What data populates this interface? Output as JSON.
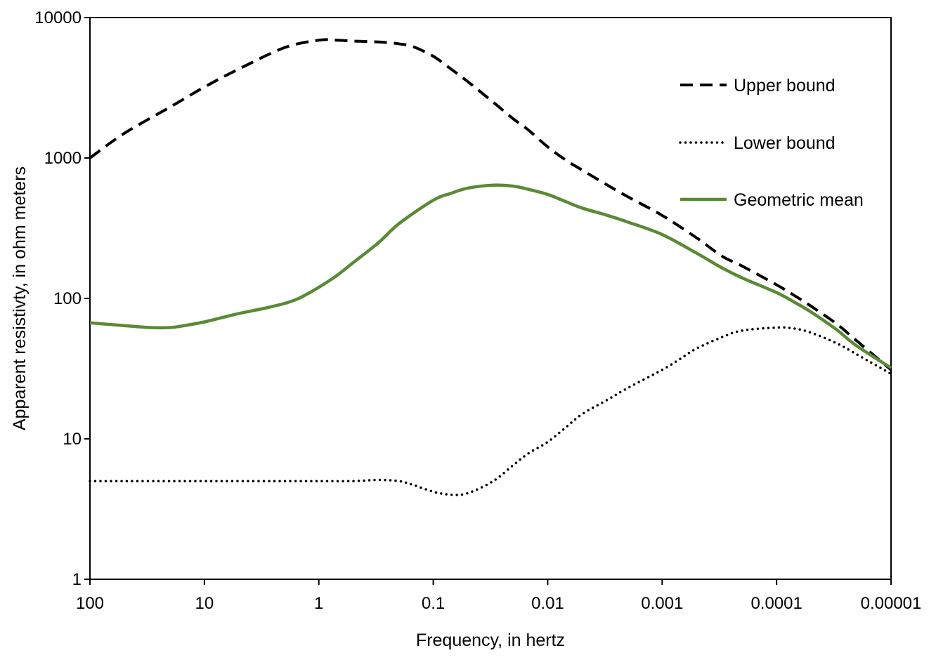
{
  "chart_data": {
    "type": "line",
    "title": "",
    "xlabel": "Frequency, in hertz",
    "ylabel": "Apparent resistivty, in ohm meters",
    "x_scale": "log",
    "y_scale": "log",
    "x_reversed": true,
    "xlim": [
      100,
      1e-05
    ],
    "ylim": [
      1,
      10000
    ],
    "x_ticks": [
      100,
      10,
      1,
      0.1,
      0.01,
      0.001,
      0.0001,
      1e-05
    ],
    "x_tick_labels": [
      "100",
      "10",
      "1",
      "0.1",
      "0.01",
      "0.001",
      "0.0001",
      "0.00001"
    ],
    "y_ticks": [
      1,
      10,
      100,
      1000,
      10000
    ],
    "y_tick_labels": [
      "1",
      "10",
      "100",
      "1000",
      "10000"
    ],
    "grid": false,
    "legend_position": "top-right",
    "series": [
      {
        "name": "Upper bound",
        "style": "dashed",
        "color": "#000000",
        "x": [
          100,
          50,
          20,
          10,
          5,
          2,
          1,
          0.7,
          0.5,
          0.3,
          0.2,
          0.15,
          0.1,
          0.07,
          0.05,
          0.03,
          0.02,
          0.015,
          0.01,
          0.007,
          0.005,
          0.003,
          0.002,
          0.001,
          0.0005,
          0.0003,
          0.0002,
          0.0001,
          7e-05,
          5e-05,
          3e-05,
          2e-05,
          1e-05
        ],
        "y": [
          1000,
          1500,
          2300,
          3200,
          4300,
          6100,
          6900,
          6900,
          6800,
          6700,
          6500,
          6200,
          5300,
          4300,
          3500,
          2500,
          1900,
          1600,
          1200,
          970,
          820,
          640,
          530,
          390,
          270,
          200,
          170,
          125,
          105,
          88,
          66,
          50,
          31
        ]
      },
      {
        "name": "Lower bound",
        "style": "dotted",
        "color": "#000000",
        "x": [
          100,
          50,
          20,
          10,
          5,
          2,
          1,
          0.5,
          0.3,
          0.2,
          0.15,
          0.1,
          0.07,
          0.05,
          0.03,
          0.02,
          0.015,
          0.01,
          0.007,
          0.005,
          0.003,
          0.002,
          0.001,
          0.0007,
          0.0005,
          0.0003,
          0.0002,
          0.0001,
          7e-05,
          5e-05,
          3e-05,
          2e-05,
          1e-05
        ],
        "y": [
          5,
          5,
          5,
          5,
          5,
          5,
          5,
          5,
          5.1,
          5,
          4.7,
          4.2,
          4,
          4.1,
          5,
          6.5,
          7.8,
          9.5,
          12,
          15,
          19,
          23,
          31,
          37,
          44,
          53,
          59,
          62,
          61,
          57,
          48,
          40,
          29
        ]
      },
      {
        "name": "Geometric mean",
        "style": "solid",
        "color": "#5a8a35",
        "x": [
          100,
          50,
          30,
          20,
          15,
          10,
          7,
          5,
          3,
          2,
          1.5,
          1,
          0.7,
          0.5,
          0.3,
          0.2,
          0.1,
          0.07,
          0.05,
          0.03,
          0.02,
          0.015,
          0.01,
          0.007,
          0.005,
          0.003,
          0.002,
          0.001,
          0.0005,
          0.0003,
          0.0002,
          0.0001,
          7e-05,
          5e-05,
          3e-05,
          2e-05,
          1e-05
        ],
        "y": [
          67,
          64,
          62,
          62,
          64,
          68,
          73,
          78,
          85,
          92,
          100,
          120,
          145,
          180,
          250,
          340,
          500,
          560,
          610,
          640,
          630,
          600,
          550,
          490,
          440,
          390,
          350,
          285,
          210,
          165,
          140,
          110,
          94,
          80,
          60,
          46,
          32
        ]
      }
    ]
  }
}
